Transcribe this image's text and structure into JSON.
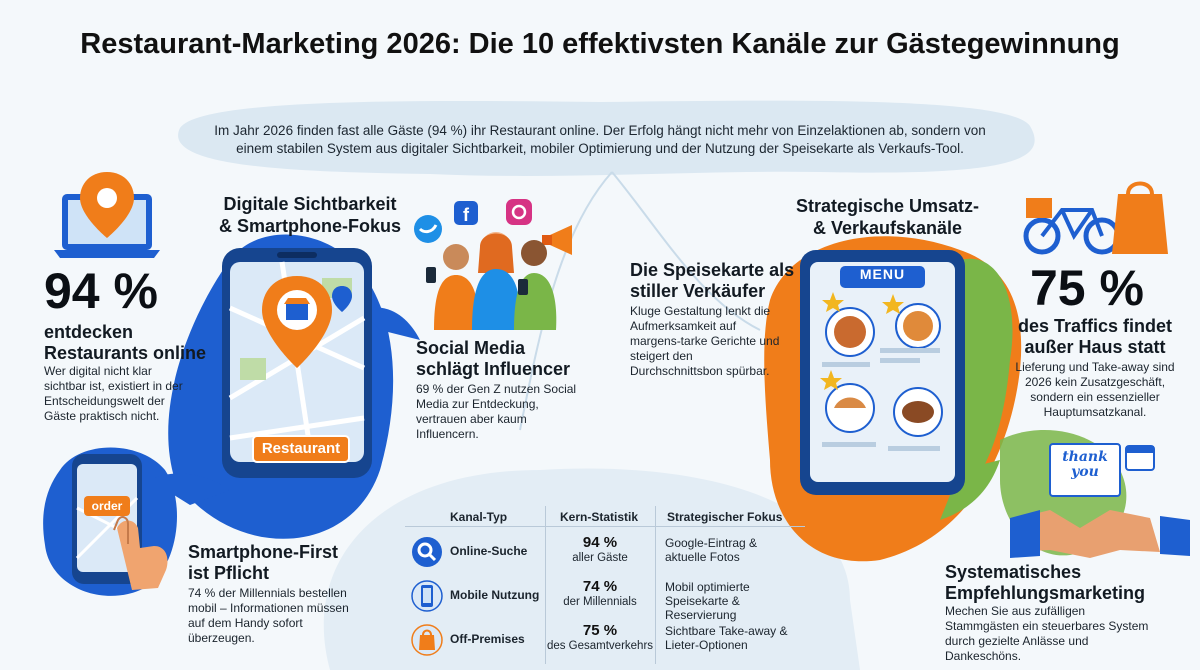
{
  "title": "Restaurant-Marketing 2026: Die 10 effektivsten Kanäle zur Gästegewinnung",
  "intro": "Im Jahr 2026 finden fast alle Gäste (94 %) ihr Restaurant online. Der Erfolg hängt nicht mehr von Einzelaktionen ab, sondern von einem stabilen System aus digitaler Sichtbarkeit, mobiler Optimierung und der Nutzung der Speisekarte als Verkaufs-Tool.",
  "left": {
    "section_title_1": "Digitale Sichtbarkeit",
    "section_title_2": "& Smartphone-Fokus",
    "stat_value": "94 %",
    "stat_label_1": "entdecken",
    "stat_label_2": "Restaurants online",
    "stat_desc": "Wer digital nicht klar sichtbar ist, existiert in der Entscheidungswelt der Gäste praktisch nicht.",
    "phone_button": "Restaurant",
    "order_button": "order",
    "smartphone_title_1": "Smartphone-First",
    "smartphone_title_2": "ist Pflicht",
    "smartphone_desc": "74 % der Millennials bestellen mobil – Informationen müssen auf dem Handy sofort überzeugen.",
    "social_title_1": "Social Media",
    "social_title_2": "schlägt Influencer",
    "social_desc": "69 % der Gen Z nutzen Social Media zur Entdeckung, vertrauen aber kaum Influencern."
  },
  "right": {
    "section_title_1": "Strategische Umsatz-",
    "section_title_2": "& Verkaufskanäle",
    "menu_title_1": "Die Speisekarte als",
    "menu_title_2": "stiller Verkäufer",
    "menu_desc": "Kluge Gestaltung lenkt die Aufmerksamkeit auf margens-tarke Gerichte und steigert den Durchschnittsbon spürbar.",
    "menu_label": "MENU",
    "stat_value": "75 %",
    "stat_label_1": "des Traffics findet",
    "stat_label_2": "außer Haus statt",
    "stat_desc": "Lieferung und Take-away sind 2026 kein Zusatzgeschäft, sondern ein essenzieller Hauptumsatzkanal.",
    "card_text_1": "thank",
    "card_text_2": "you",
    "referral_title_1": "Systematisches",
    "referral_title_2": "Empfehlungsmarketing",
    "referral_desc": "Mechen Sie aus zufälligen Stammgästen ein steuerbares System durch gezielte Anlässe und Dankeschöns."
  },
  "table": {
    "headers": [
      "Kanal-Typ",
      "Kern-Statistik",
      "Strategischer Fokus"
    ],
    "rows": [
      {
        "icon": "search-icon",
        "channel": "Online-Suche",
        "stat": "94 %",
        "stat_sub": "aller Gäste",
        "focus_1": "Google-Eintrag &",
        "focus_2": "aktuelle Fotos"
      },
      {
        "icon": "smartphone-icon",
        "channel": "Mobile Nutzung",
        "stat": "74 %",
        "stat_sub": "der Millennials",
        "focus_1": "Mobil optimierte",
        "focus_2": "Speisekarte & Reservierung"
      },
      {
        "icon": "shopping-bag-icon",
        "channel": "Off-Premises",
        "stat": "75 %",
        "stat_sub": "des Gesamtverkehrs",
        "focus_1": "Sichtbare Take-away &",
        "focus_2": "Lieter-Optionen"
      }
    ]
  },
  "colors": {
    "blue": "#1e6fd6",
    "orange": "#f07d1a",
    "green": "#7ab648",
    "light_blue": "#d9e9f5"
  }
}
